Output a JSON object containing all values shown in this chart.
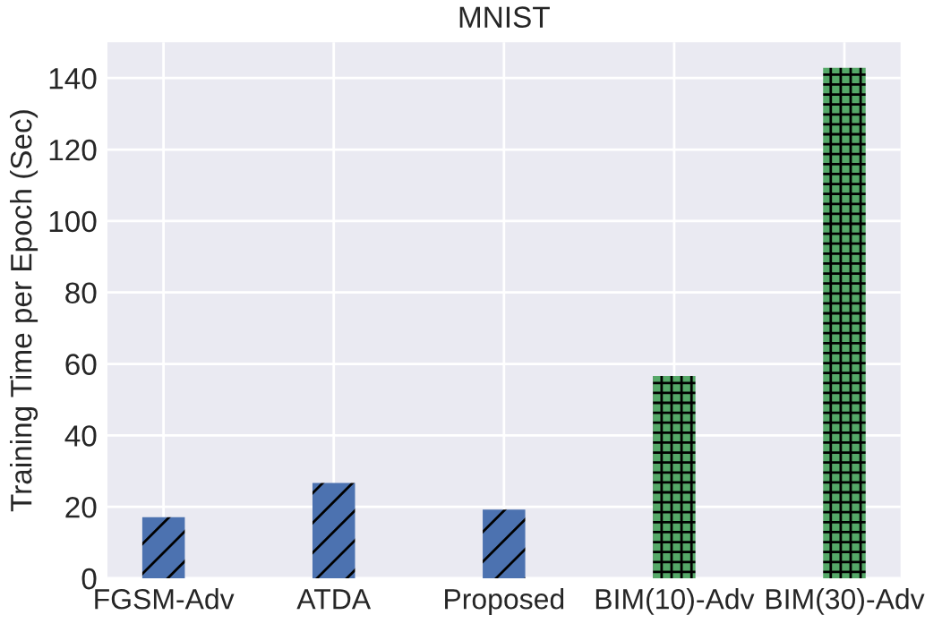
{
  "chart_data": {
    "type": "bar",
    "title": "MNIST",
    "ylabel": "Training Time per Epoch (Sec)",
    "categories": [
      "FGSM-Adv",
      "ATDA",
      "Proposed",
      "BIM(10)-Adv",
      "BIM(30)-Adv"
    ],
    "series": [
      {
        "color": "#4c72b0",
        "values": [
          17.1,
          26.7,
          19.2,
          null,
          null
        ]
      },
      {
        "color": "#55a868",
        "values": [
          null,
          null,
          null,
          56.6,
          142.9
        ]
      }
    ],
    "ylim": [
      0,
      150
    ],
    "yticks": [
      0,
      20,
      40,
      60,
      80,
      100,
      120,
      140
    ],
    "grid": true
  }
}
